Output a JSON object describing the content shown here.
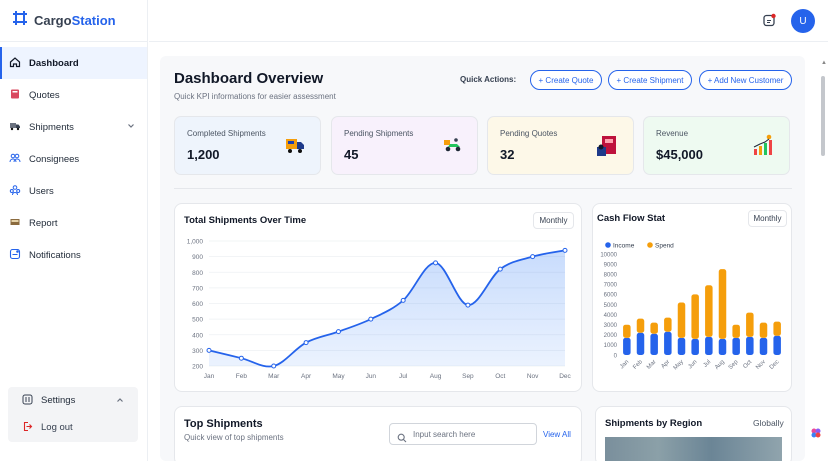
{
  "brand": {
    "name_prefix": "Cargo",
    "name_suffix": "Station"
  },
  "user": {
    "avatar_initial": "U"
  },
  "sidebar": {
    "items": [
      {
        "label": "Dashboard",
        "icon": "home-icon",
        "active": true
      },
      {
        "label": "Quotes",
        "icon": "book-icon"
      },
      {
        "label": "Shipments",
        "icon": "truck-icon",
        "has_submenu": true
      },
      {
        "label": "Consignees",
        "icon": "users-group-icon"
      },
      {
        "label": "Users",
        "icon": "users-icon"
      },
      {
        "label": "Report",
        "icon": "report-icon"
      },
      {
        "label": "Notifications",
        "icon": "notification-icon"
      }
    ],
    "settings_label": "Settings",
    "logout_label": "Log out"
  },
  "header": {
    "title": "Dashboard Overview",
    "subtitle": "Quick KPI informations for easier assessment",
    "quick_actions_label": "Quick Actions:",
    "actions": [
      "+ Create Quote",
      "+ Create Shipment",
      "+ Add New Customer"
    ]
  },
  "kpis": [
    {
      "title": "Completed Shipments",
      "value": "1,200",
      "bg": "#eef4fc",
      "icon": "delivery-truck-icon"
    },
    {
      "title": "Pending Shipments",
      "value": "45",
      "bg": "#f8f1fc",
      "icon": "delivery-scooter-icon"
    },
    {
      "title": "Pending Quotes",
      "value": "32",
      "bg": "#fdf8e8",
      "icon": "box-stack-icon"
    },
    {
      "title": "Revenue",
      "value": "$45,000",
      "bg": "#eefaf1",
      "icon": "revenue-chart-icon"
    }
  ],
  "total_shipments_card": {
    "title": "Total Shipments Over Time",
    "period": "Monthly"
  },
  "cash_flow_card": {
    "title": "Cash Flow Stat",
    "period": "Monthly"
  },
  "top_shipments": {
    "title": "Top Shipments",
    "subtitle": "Quick view of top shipments",
    "search_placeholder": "Input search here",
    "view_all": "View All"
  },
  "region_card": {
    "title": "Shipments by Region",
    "scope": "Globally"
  },
  "colors": {
    "accent": "#2563eb",
    "income": "#2563eb",
    "spend": "#f59e0b"
  },
  "chart_data": [
    {
      "type": "area",
      "title": "Total Shipments Over Time",
      "x": [
        "Jan",
        "Feb",
        "Mar",
        "Apr",
        "May",
        "Jun",
        "Jul",
        "Aug",
        "Sep",
        "Oct",
        "Nov",
        "Dec"
      ],
      "series": [
        {
          "values": [
            300,
            250,
            200,
            350,
            420,
            500,
            620,
            860,
            590,
            820,
            900,
            940
          ]
        }
      ],
      "ylim": [
        200,
        1000
      ],
      "yticks": [
        "200",
        "300",
        "400",
        "500",
        "600",
        "700",
        "800",
        "900",
        "1,000"
      ]
    },
    {
      "type": "bar",
      "title": "Cash Flow Stat",
      "stacked": true,
      "categories": [
        "Jan",
        "Feb",
        "Mar",
        "Apr",
        "May",
        "Jun",
        "Jul",
        "Aug",
        "Sep",
        "Oct",
        "Nov",
        "Dec"
      ],
      "series": [
        {
          "name": "Income",
          "values": [
            1700,
            2200,
            2100,
            2300,
            1700,
            1600,
            1800,
            1600,
            1700,
            1800,
            1700,
            1900
          ]
        },
        {
          "name": "Spend",
          "values": [
            1300,
            1400,
            1100,
            1400,
            3500,
            4400,
            5100,
            6900,
            1300,
            2400,
            1500,
            1400
          ]
        }
      ],
      "ylim": [
        0,
        10000
      ],
      "yticks": [
        "0",
        "1000",
        "2000",
        "3000",
        "4000",
        "5000",
        "6000",
        "7000",
        "8000",
        "9000",
        "10000"
      ]
    }
  ]
}
